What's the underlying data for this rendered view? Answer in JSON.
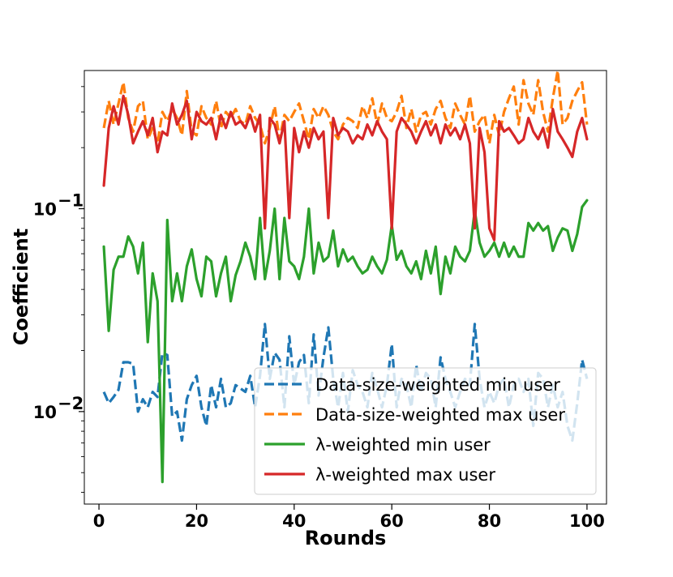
{
  "chart_data": {
    "type": "line",
    "title": "",
    "xlabel": "Rounds",
    "ylabel": "Coefficient",
    "yscale": "log",
    "xlim": [
      -3,
      104
    ],
    "ylim": [
      0.0035,
      0.48
    ],
    "grid": false,
    "legend_position": "lower-right",
    "x_ticks": [
      0,
      20,
      40,
      60,
      80,
      100
    ],
    "y_ticks": [
      0.01,
      0.1
    ],
    "y_tick_labels": [
      {
        "base": "10",
        "exp": "−2"
      },
      {
        "base": "10",
        "exp": "−1"
      }
    ],
    "x_tick_labels": [
      "0",
      "20",
      "40",
      "60",
      "80",
      "100"
    ],
    "x": [
      1,
      2,
      3,
      4,
      5,
      6,
      7,
      8,
      9,
      10,
      11,
      12,
      13,
      14,
      15,
      16,
      17,
      18,
      19,
      20,
      21,
      22,
      23,
      24,
      25,
      26,
      27,
      28,
      29,
      30,
      31,
      32,
      33,
      34,
      35,
      36,
      37,
      38,
      39,
      40,
      41,
      42,
      43,
      44,
      45,
      46,
      47,
      48,
      49,
      50,
      51,
      52,
      53,
      54,
      55,
      56,
      57,
      58,
      59,
      60,
      61,
      62,
      63,
      64,
      65,
      66,
      67,
      68,
      69,
      70,
      71,
      72,
      73,
      74,
      75,
      76,
      77,
      78,
      79,
      80,
      81,
      82,
      83,
      84,
      85,
      86,
      87,
      88,
      89,
      90,
      91,
      92,
      93,
      94,
      95,
      96,
      97,
      98,
      99,
      100
    ],
    "series": [
      {
        "name": "Data-size-weighted min user",
        "color": "#1f77b4",
        "dash": true,
        "values": [
          0.0125,
          0.011,
          0.0118,
          0.0128,
          0.0175,
          0.0175,
          0.0172,
          0.01,
          0.0115,
          0.0105,
          0.0125,
          0.0118,
          0.0195,
          0.019,
          0.0095,
          0.01,
          0.0072,
          0.0115,
          0.0135,
          0.015,
          0.0105,
          0.0085,
          0.0135,
          0.0105,
          0.0145,
          0.0105,
          0.011,
          0.0135,
          0.013,
          0.0125,
          0.015,
          0.0105,
          0.015,
          0.027,
          0.0145,
          0.0195,
          0.018,
          0.0105,
          0.0235,
          0.0135,
          0.0175,
          0.019,
          0.011,
          0.024,
          0.012,
          0.0185,
          0.026,
          0.0145,
          0.0105,
          0.0155,
          0.01,
          0.016,
          0.0135,
          0.0125,
          0.0105,
          0.0155,
          0.013,
          0.0105,
          0.0135,
          0.0215,
          0.0105,
          0.0145,
          0.0135,
          0.0105,
          0.017,
          0.0125,
          0.0155,
          0.0145,
          0.0105,
          0.0185,
          0.0145,
          0.0125,
          0.0105,
          0.0125,
          0.0145,
          0.0135,
          0.027,
          0.0145,
          0.0105,
          0.0125,
          0.011,
          0.0135,
          0.0145,
          0.0105,
          0.0135,
          0.0145,
          0.0125,
          0.0145,
          0.0085,
          0.0155,
          0.0145,
          0.0105,
          0.0135,
          0.0105,
          0.0125,
          0.0085,
          0.0072,
          0.011,
          0.018,
          0.0145
        ]
      },
      {
        "name": "Data-size-weighted max user",
        "color": "#ff7f0e",
        "dash": true,
        "values": [
          0.25,
          0.34,
          0.26,
          0.33,
          0.42,
          0.28,
          0.24,
          0.32,
          0.34,
          0.22,
          0.25,
          0.21,
          0.3,
          0.27,
          0.31,
          0.28,
          0.23,
          0.38,
          0.24,
          0.23,
          0.32,
          0.28,
          0.26,
          0.34,
          0.25,
          0.3,
          0.28,
          0.31,
          0.27,
          0.26,
          0.32,
          0.28,
          0.26,
          0.21,
          0.25,
          0.32,
          0.22,
          0.29,
          0.27,
          0.3,
          0.33,
          0.27,
          0.22,
          0.31,
          0.28,
          0.32,
          0.29,
          0.24,
          0.22,
          0.26,
          0.28,
          0.27,
          0.25,
          0.32,
          0.28,
          0.35,
          0.26,
          0.33,
          0.28,
          0.27,
          0.3,
          0.36,
          0.25,
          0.31,
          0.24,
          0.29,
          0.3,
          0.26,
          0.31,
          0.34,
          0.28,
          0.25,
          0.33,
          0.29,
          0.26,
          0.36,
          0.24,
          0.27,
          0.29,
          0.21,
          0.29,
          0.23,
          0.3,
          0.35,
          0.4,
          0.26,
          0.43,
          0.33,
          0.29,
          0.43,
          0.3,
          0.24,
          0.35,
          0.48,
          0.26,
          0.28,
          0.34,
          0.38,
          0.42,
          0.26
        ]
      },
      {
        "name": "λ-weighted min user",
        "color": "#2ca02c",
        "dash": false,
        "values": [
          0.065,
          0.025,
          0.05,
          0.058,
          0.058,
          0.073,
          0.065,
          0.048,
          0.068,
          0.022,
          0.048,
          0.035,
          0.0045,
          0.088,
          0.035,
          0.048,
          0.035,
          0.052,
          0.063,
          0.045,
          0.037,
          0.058,
          0.055,
          0.037,
          0.048,
          0.058,
          0.035,
          0.047,
          0.055,
          0.068,
          0.058,
          0.045,
          0.09,
          0.045,
          0.062,
          0.1,
          0.045,
          0.09,
          0.055,
          0.052,
          0.045,
          0.058,
          0.1,
          0.048,
          0.068,
          0.055,
          0.058,
          0.078,
          0.052,
          0.063,
          0.055,
          0.058,
          0.052,
          0.048,
          0.05,
          0.058,
          0.052,
          0.048,
          0.056,
          0.083,
          0.056,
          0.062,
          0.052,
          0.048,
          0.055,
          0.045,
          0.062,
          0.048,
          0.065,
          0.038,
          0.058,
          0.048,
          0.065,
          0.058,
          0.055,
          0.062,
          0.098,
          0.068,
          0.058,
          0.062,
          0.068,
          0.058,
          0.068,
          0.058,
          0.065,
          0.058,
          0.058,
          0.085,
          0.078,
          0.085,
          0.078,
          0.082,
          0.062,
          0.072,
          0.08,
          0.078,
          0.062,
          0.075,
          0.102,
          0.11
        ]
      },
      {
        "name": "λ-weighted max user",
        "color": "#d62728",
        "dash": false,
        "values": [
          0.13,
          0.25,
          0.32,
          0.26,
          0.36,
          0.29,
          0.21,
          0.24,
          0.27,
          0.23,
          0.28,
          0.19,
          0.24,
          0.23,
          0.33,
          0.26,
          0.29,
          0.34,
          0.22,
          0.3,
          0.27,
          0.26,
          0.28,
          0.22,
          0.29,
          0.25,
          0.3,
          0.26,
          0.27,
          0.25,
          0.29,
          0.24,
          0.29,
          0.08,
          0.28,
          0.26,
          0.21,
          0.27,
          0.09,
          0.25,
          0.19,
          0.24,
          0.2,
          0.25,
          0.22,
          0.24,
          0.09,
          0.28,
          0.23,
          0.25,
          0.24,
          0.21,
          0.23,
          0.22,
          0.26,
          0.23,
          0.27,
          0.24,
          0.22,
          0.08,
          0.24,
          0.28,
          0.26,
          0.24,
          0.21,
          0.24,
          0.27,
          0.23,
          0.26,
          0.21,
          0.26,
          0.23,
          0.25,
          0.22,
          0.26,
          0.21,
          0.08,
          0.25,
          0.19,
          0.08,
          0.07,
          0.27,
          0.24,
          0.25,
          0.23,
          0.21,
          0.22,
          0.28,
          0.24,
          0.22,
          0.25,
          0.2,
          0.31,
          0.24,
          0.22,
          0.2,
          0.18,
          0.24,
          0.28,
          0.22
        ]
      }
    ]
  }
}
